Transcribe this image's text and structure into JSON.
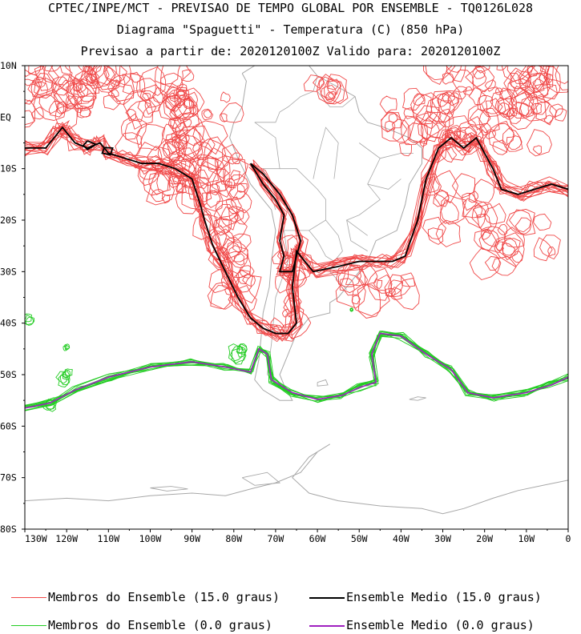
{
  "header": {
    "line1": "CPTEC/INPE/MCT - PREVISAO DE TEMPO GLOBAL POR ENSEMBLE - TQ0126L028",
    "line2": "Diagrama \"Spaguetti\" - Temperatura (C) (850 hPa)",
    "line3": "Previsao a partir de: 2020120100Z  Valido para: 2020120100Z"
  },
  "map": {
    "lon_range": [
      -130,
      0
    ],
    "lat_range": [
      -80,
      10
    ],
    "lon_ticks": [
      {
        "lon": -130,
        "label": "130W"
      },
      {
        "lon": -120,
        "label": "120W"
      },
      {
        "lon": -110,
        "label": "110W"
      },
      {
        "lon": -100,
        "label": "100W"
      },
      {
        "lon": -90,
        "label": "90W"
      },
      {
        "lon": -80,
        "label": "80W"
      },
      {
        "lon": -70,
        "label": "70W"
      },
      {
        "lon": -60,
        "label": "60W"
      },
      {
        "lon": -50,
        "label": "50W"
      },
      {
        "lon": -40,
        "label": "40W"
      },
      {
        "lon": -30,
        "label": "30W"
      },
      {
        "lon": -20,
        "label": "20W"
      },
      {
        "lon": -10,
        "label": "10W"
      },
      {
        "lon": 0,
        "label": "0"
      }
    ],
    "lat_ticks": [
      {
        "lat": 10,
        "label": "10N"
      },
      {
        "lat": 0,
        "label": "EQ"
      },
      {
        "lat": -10,
        "label": "10S"
      },
      {
        "lat": -20,
        "label": "20S"
      },
      {
        "lat": -30,
        "label": "30S"
      },
      {
        "lat": -40,
        "label": "40S"
      },
      {
        "lat": -50,
        "label": "50S"
      },
      {
        "lat": -60,
        "label": "60S"
      },
      {
        "lat": -70,
        "label": "70S"
      },
      {
        "lat": -80,
        "label": "80S"
      }
    ],
    "colors": {
      "members_15": "#f04848",
      "mean_15": "#000000",
      "members_0": "#22cc22",
      "mean_0": "#a020c0",
      "coast": "#a8a8a8"
    },
    "contours": {
      "mean_15": [
        [
          -130,
          -6
        ],
        [
          -125,
          -6
        ],
        [
          -122,
          -3
        ],
        [
          -121,
          -2
        ],
        [
          -120,
          -3
        ],
        [
          -118,
          -5
        ],
        [
          -115,
          -6
        ],
        [
          -112,
          -5
        ],
        [
          -110,
          -7
        ],
        [
          -106,
          -8
        ],
        [
          -102,
          -9
        ],
        [
          -98,
          -9
        ],
        [
          -94,
          -10
        ],
        [
          -90,
          -12
        ],
        [
          -88,
          -17
        ],
        [
          -87,
          -20
        ],
        [
          -85,
          -25
        ],
        [
          -82,
          -30
        ],
        [
          -79,
          -35
        ],
        [
          -76,
          -39
        ],
        [
          -73,
          -41
        ],
        [
          -70,
          -42
        ],
        [
          -67,
          -42
        ],
        [
          -65,
          -40
        ],
        [
          -66,
          -33
        ],
        [
          -65,
          -26
        ],
        [
          -63,
          -28
        ],
        [
          -61,
          -30
        ],
        [
          -55,
          -29
        ],
        [
          -50,
          -28
        ],
        [
          -45,
          -28
        ],
        [
          -42,
          -28
        ],
        [
          -39,
          -27
        ],
        [
          -36,
          -20
        ],
        [
          -34,
          -12
        ],
        [
          -31,
          -6
        ],
        [
          -28,
          -4
        ],
        [
          -25,
          -6
        ],
        [
          -22,
          -4
        ],
        [
          -20,
          -7
        ],
        [
          -18,
          -10
        ],
        [
          -16,
          -14
        ],
        [
          -12,
          -15
        ],
        [
          -8,
          -14
        ],
        [
          -4,
          -13
        ],
        [
          0,
          -14
        ]
      ],
      "mean_0": [
        [
          -130,
          -56.5
        ],
        [
          -124,
          -55.5
        ],
        [
          -118,
          -53
        ],
        [
          -110,
          -50.5
        ],
        [
          -100,
          -48.5
        ],
        [
          -90,
          -47.5
        ],
        [
          -82,
          -48.5
        ],
        [
          -76,
          -49.5
        ],
        [
          -74,
          -45
        ],
        [
          -72,
          -46
        ],
        [
          -71,
          -51
        ],
        [
          -66,
          -53.5
        ],
        [
          -60,
          -54.8
        ],
        [
          -54,
          -54
        ],
        [
          -50,
          -52.5
        ],
        [
          -46,
          -51.5
        ],
        [
          -47,
          -46
        ],
        [
          -45,
          -42
        ],
        [
          -40,
          -42.5
        ],
        [
          -34,
          -46
        ],
        [
          -28,
          -49
        ],
        [
          -24,
          -53.5
        ],
        [
          -18,
          -54.5
        ],
        [
          -10,
          -53.5
        ],
        [
          -4,
          -52
        ],
        [
          0,
          -50.5
        ]
      ],
      "mean_15_islands": [
        [
          [
            -115,
            -4.6
          ],
          [
            -113,
            -5.3
          ],
          [
            -115,
            -6.3
          ],
          [
            -116,
            -5.5
          ],
          [
            -115,
            -4.6
          ]
        ],
        [
          [
            -111,
            -5.9
          ],
          [
            -109,
            -6
          ],
          [
            -109.5,
            -7.3
          ],
          [
            -111.5,
            -7
          ],
          [
            -111,
            -5.9
          ]
        ]
      ],
      "andes_15": [
        [
          -76,
          -9
        ],
        [
          -73,
          -13
        ],
        [
          -70,
          -16
        ],
        [
          -68,
          -19
        ],
        [
          -69,
          -24
        ],
        [
          -68,
          -27
        ],
        [
          -69,
          -30
        ],
        [
          -66,
          -30
        ],
        [
          -64,
          -24
        ],
        [
          -66,
          -19
        ],
        [
          -69,
          -15
        ],
        [
          -73,
          -11
        ],
        [
          -76,
          -9
        ]
      ]
    }
  },
  "legend": {
    "members_15": "Membros do Ensemble (15.0 graus)",
    "mean_15": "Ensemble Medio (15.0 graus)",
    "members_0": "Membros do Ensemble (0.0 graus)",
    "mean_0": "Ensemble Medio (0.0 graus)"
  }
}
